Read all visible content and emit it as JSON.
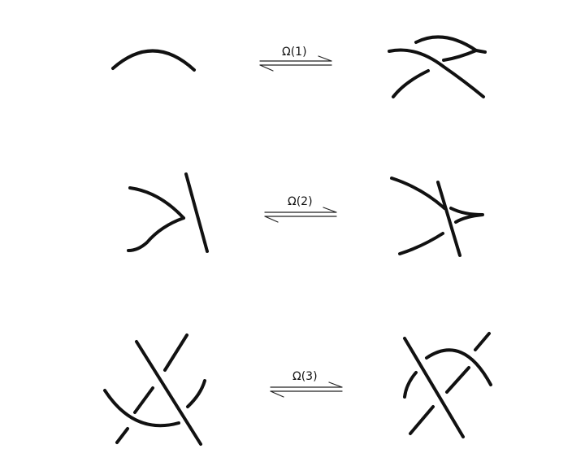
{
  "moves": [
    {
      "id": "reidemeister-1",
      "label": "Ω(1)"
    },
    {
      "id": "reidemeister-2",
      "label": "Ω(2)"
    },
    {
      "id": "reidemeister-3",
      "label": "Ω(3)"
    }
  ],
  "colors": {
    "stroke": "#111111",
    "background": "#ffffff"
  }
}
